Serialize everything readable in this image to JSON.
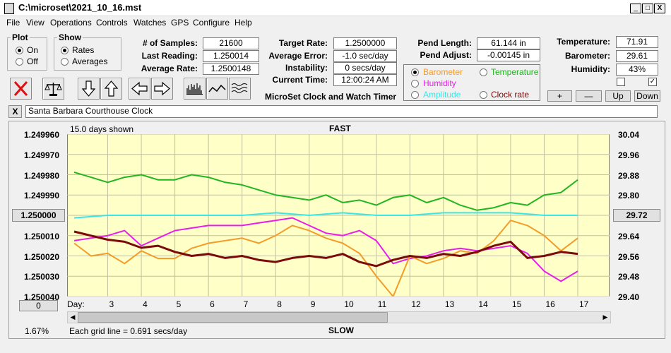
{
  "window": {
    "title": "C:\\microset\\2021_10_16.mst",
    "min": "_",
    "max": "□",
    "close": "X"
  },
  "menu": [
    "File",
    "View",
    "Operations",
    "Controls",
    "Watches",
    "GPS",
    "Configure",
    "Help"
  ],
  "plot_group": {
    "legend": "Plot",
    "on": "On",
    "off": "Off",
    "selected": "On"
  },
  "show_group": {
    "legend": "Show",
    "rates": "Rates",
    "averages": "Averages",
    "selected": "Rates"
  },
  "stats": {
    "samples_label": "# of Samples:",
    "samples": "21600",
    "last_label": "Last Reading:",
    "last": "1.250014",
    "avg_label": "Average Rate:",
    "avg": "1.2500148",
    "target_label": "Target Rate:",
    "target": "1.2500000",
    "avgerr_label": "Average Error:",
    "avgerr": "-1.0 sec/day",
    "instab_label": "Instability:",
    "instab": "0 secs/day",
    "time_label": "Current Time:",
    "time": "12:00:24 AM",
    "pendlen_label": "Pend Length:",
    "pendlen": "61.144 in",
    "pendadj_label": "Pend Adjust:",
    "pendadj": "-0.00145 in",
    "temp_label": "Temperature:",
    "temp": "71.91",
    "baro_label": "Barometer:",
    "baro": "29.61",
    "hum_label": "Humidity:",
    "hum": "43%"
  },
  "app_caption": "MicroSet Clock and Watch Timer",
  "sensor_select": {
    "barometer": "Barometer",
    "temperature": "Temperature",
    "humidity": "Humidity",
    "amplitude": "Amplitude",
    "clockrate": "Clock rate",
    "selected": "Barometer"
  },
  "scale_buttons": {
    "plus": "+",
    "minus": "—",
    "up": "Up",
    "down": "Down"
  },
  "checkbox_right": "✓",
  "clock_name": {
    "close": "X",
    "value": "Santa Barbara Courthouse Clock"
  },
  "chart": {
    "days_shown": "15.0 days shown",
    "top_label": "FAST",
    "bottom_label": "SLOW",
    "grid_note": "Each grid line = 0.691 secs/day",
    "left_button": "1.250000",
    "right_button": "29.72",
    "zero_button": "0",
    "percent": "1.67%",
    "day_label": "Day:",
    "colors": {
      "barometer": "#f39c2a",
      "temperature": "#21b521",
      "humidity": "#e91ee9",
      "amplitude": "#3ae6e6",
      "rate": "#7b0a0a",
      "bg": "#ffffc8"
    }
  },
  "chart_data": {
    "type": "line",
    "y_left_ticks": [
      "1.249960",
      "1.249970",
      "1.249980",
      "1.249990",
      "1.250000",
      "1.250010",
      "1.250020",
      "1.250030",
      "1.250040"
    ],
    "y_right_ticks": [
      "30.04",
      "29.96",
      "29.88",
      "29.80",
      "29.72",
      "29.64",
      "29.56",
      "29.48",
      "29.40"
    ],
    "x_ticks": [
      "3",
      "4",
      "5",
      "6",
      "7",
      "8",
      "9",
      "10",
      "11",
      "12",
      "13",
      "14",
      "15",
      "16",
      "17"
    ],
    "xlim": [
      2,
      17
    ],
    "ylim_rate": [
      1.25004,
      1.24996
    ],
    "ylim_baro": [
      29.4,
      30.04
    ],
    "series": [
      {
        "name": "Temperature",
        "x": [
          2,
          2.5,
          3,
          3.5,
          4,
          4.5,
          5,
          5.5,
          6,
          6.5,
          7,
          7.5,
          8,
          8.5,
          9,
          9.5,
          10,
          10.5,
          11,
          11.5,
          12,
          12.5,
          13,
          13.5,
          14,
          14.5,
          15,
          15.5,
          16,
          16.5,
          17
        ],
        "y": [
          29.89,
          29.87,
          29.85,
          29.87,
          29.88,
          29.86,
          29.86,
          29.88,
          29.87,
          29.85,
          29.84,
          29.82,
          29.8,
          29.79,
          29.78,
          29.8,
          29.77,
          29.78,
          29.76,
          29.79,
          29.8,
          29.77,
          29.79,
          29.76,
          29.74,
          29.75,
          29.77,
          29.76,
          29.8,
          29.81,
          29.86
        ]
      },
      {
        "name": "Amplitude",
        "x": [
          2,
          3,
          4,
          5,
          6,
          7,
          8,
          9,
          10,
          11,
          12,
          13,
          14,
          15,
          16,
          17
        ],
        "y": [
          29.71,
          29.72,
          29.72,
          29.72,
          29.72,
          29.72,
          29.73,
          29.72,
          29.73,
          29.72,
          29.72,
          29.73,
          29.73,
          29.73,
          29.72,
          29.72
        ]
      },
      {
        "name": "Humidity",
        "x": [
          2,
          2.5,
          3,
          3.5,
          4,
          4.5,
          5,
          5.5,
          6,
          6.5,
          7,
          7.5,
          8,
          8.5,
          9,
          9.5,
          10,
          10.5,
          11,
          11.5,
          12,
          12.5,
          13,
          13.5,
          14,
          14.5,
          15,
          15.5,
          16,
          16.5,
          17
        ],
        "y": [
          29.62,
          29.63,
          29.64,
          29.66,
          29.6,
          29.63,
          29.66,
          29.67,
          29.68,
          29.68,
          29.68,
          29.69,
          29.7,
          29.71,
          29.68,
          29.65,
          29.64,
          29.66,
          29.62,
          29.53,
          29.55,
          29.56,
          29.58,
          29.59,
          29.58,
          29.59,
          29.6,
          29.57,
          29.5,
          29.46,
          29.5
        ]
      },
      {
        "name": "Barometer",
        "x": [
          2,
          2.5,
          3,
          3.5,
          4,
          4.5,
          5,
          5.5,
          6,
          6.5,
          7,
          7.5,
          8,
          8.5,
          9,
          9.5,
          10,
          10.5,
          11,
          11.5,
          12,
          12.5,
          13,
          13.5,
          14,
          14.5,
          15,
          15.5,
          16,
          16.5,
          17
        ],
        "y": [
          29.61,
          29.56,
          29.57,
          29.53,
          29.58,
          29.55,
          29.55,
          29.59,
          29.61,
          29.62,
          29.63,
          29.61,
          29.64,
          29.68,
          29.66,
          29.63,
          29.61,
          29.57,
          29.48,
          29.4,
          29.56,
          29.53,
          29.55,
          29.58,
          29.57,
          29.62,
          29.7,
          29.68,
          29.64,
          29.58,
          29.63
        ]
      },
      {
        "name": "Rate",
        "x": [
          2,
          2.5,
          3,
          3.5,
          4,
          4.5,
          5,
          5.5,
          6,
          6.5,
          7,
          7.5,
          8,
          8.5,
          9,
          9.5,
          10,
          10.5,
          11,
          11.5,
          12,
          12.5,
          13,
          13.5,
          14,
          14.5,
          15,
          15.5,
          16,
          16.5,
          17
        ],
        "y": [
          1.250008,
          1.25001,
          1.250012,
          1.250013,
          1.250016,
          1.250015,
          1.250018,
          1.25002,
          1.250019,
          1.250021,
          1.25002,
          1.250022,
          1.250023,
          1.250021,
          1.25002,
          1.250021,
          1.250019,
          1.250023,
          1.250025,
          1.250022,
          1.25002,
          1.250021,
          1.250019,
          1.25002,
          1.250018,
          1.250015,
          1.250013,
          1.250021,
          1.25002,
          1.250018,
          1.250019
        ]
      }
    ]
  }
}
